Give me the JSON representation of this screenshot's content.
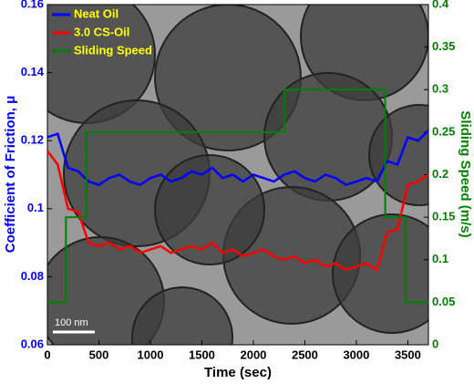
{
  "chart_data": {
    "type": "line",
    "xlabel": "Time (sec)",
    "ylabel": "Coefficient of Friction, μ",
    "y2label": "Sliding Speed (m/s)",
    "annotation": "100 nm",
    "xlim": [
      0,
      3700
    ],
    "xticks": [
      0,
      500,
      1000,
      1500,
      2000,
      2500,
      3000,
      3500
    ],
    "ylim": [
      0.06,
      0.16
    ],
    "yticks": [
      0.06,
      0.08,
      0.1,
      0.12,
      0.14,
      0.16
    ],
    "y2lim": [
      0,
      0.4
    ],
    "y2ticks": [
      0,
      0.05,
      0.1,
      0.15,
      0.2,
      0.25,
      0.3,
      0.35,
      0.4
    ],
    "legend": "upper left",
    "series": [
      {
        "name": "Neat Oil",
        "color": "#0000ff",
        "x": [
          0,
          100,
          200,
          300,
          400,
          500,
          600,
          700,
          800,
          900,
          1000,
          1100,
          1200,
          1300,
          1400,
          1500,
          1600,
          1700,
          1800,
          1900,
          2000,
          2100,
          2200,
          2300,
          2400,
          2500,
          2600,
          2700,
          2800,
          2900,
          3000,
          3100,
          3200,
          3300,
          3400,
          3500,
          3600,
          3700
        ],
        "values": [
          0.121,
          0.122,
          0.112,
          0.111,
          0.108,
          0.107,
          0.109,
          0.11,
          0.108,
          0.107,
          0.109,
          0.11,
          0.108,
          0.109,
          0.111,
          0.11,
          0.112,
          0.109,
          0.11,
          0.108,
          0.11,
          0.109,
          0.108,
          0.11,
          0.111,
          0.109,
          0.108,
          0.11,
          0.109,
          0.107,
          0.108,
          0.109,
          0.108,
          0.114,
          0.113,
          0.121,
          0.12,
          0.123
        ]
      },
      {
        "name": "3.0 CS-Oil",
        "color": "#ff0000",
        "x": [
          0,
          100,
          200,
          300,
          400,
          500,
          600,
          700,
          800,
          900,
          1000,
          1100,
          1200,
          1300,
          1400,
          1500,
          1600,
          1700,
          1800,
          1900,
          2000,
          2100,
          2200,
          2300,
          2400,
          2500,
          2600,
          2700,
          2800,
          2900,
          3000,
          3100,
          3200,
          3300,
          3400,
          3500,
          3600,
          3700
        ],
        "values": [
          0.117,
          0.113,
          0.1,
          0.099,
          0.09,
          0.089,
          0.09,
          0.088,
          0.089,
          0.087,
          0.088,
          0.089,
          0.087,
          0.088,
          0.089,
          0.088,
          0.09,
          0.087,
          0.088,
          0.086,
          0.087,
          0.088,
          0.086,
          0.085,
          0.086,
          0.084,
          0.085,
          0.083,
          0.084,
          0.082,
          0.083,
          0.084,
          0.082,
          0.093,
          0.094,
          0.107,
          0.108,
          0.11
        ]
      },
      {
        "name": "Sliding Speed",
        "color": "#008000",
        "axis": "y2",
        "x": [
          0,
          180,
          180,
          380,
          380,
          2300,
          2300,
          3280,
          3280,
          3480,
          3480,
          3700
        ],
        "values": [
          0.05,
          0.05,
          0.15,
          0.15,
          0.25,
          0.25,
          0.3,
          0.3,
          0.15,
          0.15,
          0.05,
          0.05
        ]
      }
    ]
  }
}
